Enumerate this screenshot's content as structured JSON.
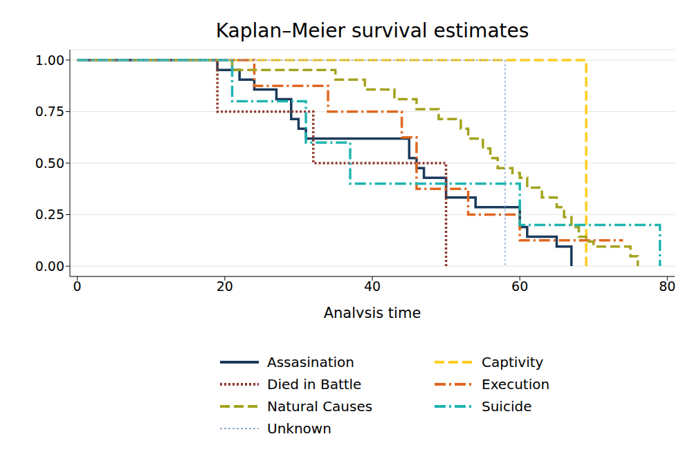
{
  "chart_data": {
    "type": "line",
    "title": "Kaplan–Meier survival estimates",
    "x_label": "Analysis time",
    "xlim": [
      -1,
      81
    ],
    "xticks": [
      0,
      20,
      40,
      60,
      80
    ],
    "ylim": [
      -0.05,
      1.05
    ],
    "yticks": [
      {
        "value": 0,
        "label": "0.00"
      },
      {
        "value": 0.25,
        "label": "0.25"
      },
      {
        "value": 0.5,
        "label": "0.50"
      },
      {
        "value": 0.75,
        "label": "0.75"
      },
      {
        "value": 1,
        "label": "1.00"
      }
    ],
    "grid": true,
    "legend": "bottom",
    "series": [
      {
        "name": "Assasination",
        "color": "#1a3a5c",
        "line_style": "solid",
        "x": [
          0,
          19,
          22,
          24,
          27,
          29,
          30,
          31,
          45,
          46,
          47,
          50,
          54,
          60,
          61,
          65,
          67
        ],
        "values": [
          1,
          0.952,
          0.905,
          0.857,
          0.81,
          0.714,
          0.667,
          0.619,
          0.524,
          0.476,
          0.429,
          0.333,
          0.286,
          0.19,
          0.143,
          0.095,
          0
        ]
      },
      {
        "name": "Captivity",
        "color": "#ffcd1f",
        "line_style": "dashed",
        "x": [
          0,
          69
        ],
        "values": [
          1,
          0
        ]
      },
      {
        "name": "Died in Battle",
        "color": "#8f3a2e",
        "line_style": "dotted",
        "x": [
          0,
          19,
          32,
          50
        ],
        "values": [
          1,
          0.75,
          0.5,
          0
        ]
      },
      {
        "name": "Execution",
        "color": "#e0661f",
        "line_style": "dashdot",
        "x": [
          0,
          24,
          34,
          44,
          46,
          53,
          60,
          74
        ],
        "values": [
          1,
          0.875,
          0.75,
          0.625,
          0.375,
          0.25,
          0.125,
          0.125
        ]
      },
      {
        "name": "Natural Causes",
        "color": "#a3a31f",
        "line_style": "dashed",
        "x": [
          0,
          21,
          35,
          39,
          43,
          46,
          49,
          52,
          53,
          55,
          56,
          57,
          59,
          60,
          61,
          63,
          65,
          66,
          67,
          68,
          69,
          70,
          75,
          76
        ],
        "values": [
          1,
          0.952,
          0.905,
          0.857,
          0.81,
          0.762,
          0.714,
          0.667,
          0.619,
          0.571,
          0.524,
          0.476,
          0.452,
          0.429,
          0.381,
          0.333,
          0.286,
          0.238,
          0.19,
          0.143,
          0.119,
          0.095,
          0.048,
          0
        ]
      },
      {
        "name": "Suicide",
        "color": "#1fb5b0",
        "line_style": "dashdot",
        "x": [
          0,
          21,
          31,
          37,
          60,
          79
        ],
        "values": [
          1,
          0.8,
          0.6,
          0.4,
          0.2,
          0
        ]
      },
      {
        "name": "Unknown",
        "color": "#90a8d0",
        "line_style": "dotted",
        "x": [
          0,
          58
        ],
        "values": [
          1,
          0
        ]
      }
    ]
  }
}
